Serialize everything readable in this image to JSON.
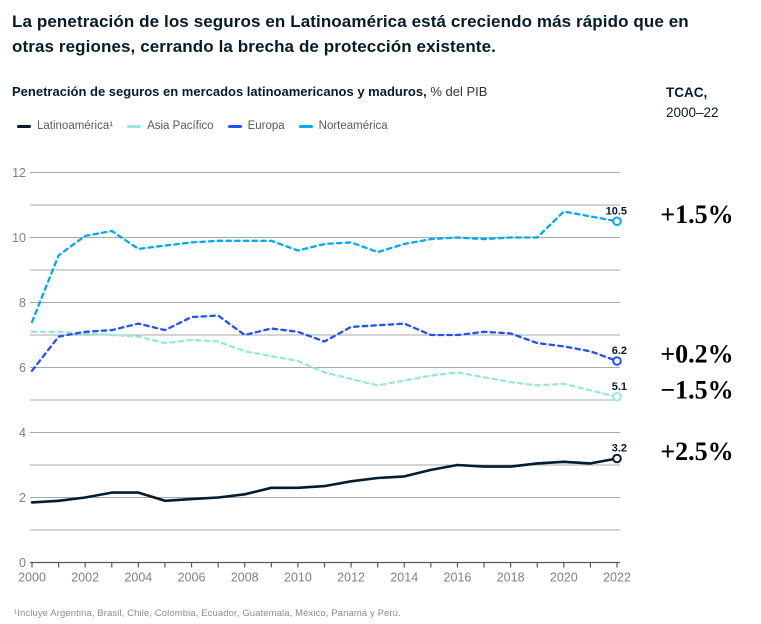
{
  "title": "La penetración de los seguros en Latinoamérica está creciendo más rápido que en otras regiones, cerrando la brecha de protección existente.",
  "subtitle": {
    "bold": "Penetración de seguros en mercados latinoamericanos y maduros,",
    "normal": " % del PIB"
  },
  "cagr_header": {
    "line1": "TCAC,",
    "line2": "2000–22"
  },
  "footnote": "¹Incluye Argentina, Brasil, Chile, Colombia, Ecuador, Guatemala, México, Panamá y Perú.",
  "colors": {
    "text_dark": "#051c2c",
    "grid": "#a8a8a8",
    "axis": "#595959",
    "tick_label": "#808080",
    "legend_text": "#595959",
    "footnote": "#8c8c8c",
    "background": "#ffffff",
    "latinoamerica": "#051c2c",
    "asia_pacifico": "#99e6dc",
    "europa": "#2251ff",
    "norteamerica": "#00a9f4"
  },
  "chart_data": {
    "type": "line",
    "x": [
      2000,
      2001,
      2002,
      2003,
      2004,
      2005,
      2006,
      2007,
      2008,
      2009,
      2010,
      2011,
      2012,
      2013,
      2014,
      2015,
      2016,
      2017,
      2018,
      2019,
      2020,
      2021,
      2022
    ],
    "x_label_every": 2,
    "ylim": [
      0,
      12
    ],
    "y_grid_step": 1,
    "y_label_step": 2,
    "grid": true,
    "legend_position": "top-left",
    "xlabel": "",
    "ylabel": "% del PIB",
    "series": [
      {
        "name": "Latinoamérica¹",
        "style": "solid",
        "color_key": "latinoamerica",
        "end_label": "3.2",
        "cagr": "+2.5%",
        "values": [
          1.85,
          1.9,
          2.0,
          2.15,
          2.15,
          1.9,
          1.95,
          2.0,
          2.1,
          2.3,
          2.3,
          2.35,
          2.5,
          2.6,
          2.65,
          2.85,
          3.0,
          2.95,
          2.95,
          3.05,
          3.1,
          3.05,
          3.2
        ]
      },
      {
        "name": "Asia Pacífico",
        "style": "dashed",
        "color_key": "asia_pacifico",
        "end_label": "5.1",
        "cagr": "−1.5%",
        "values": [
          7.1,
          7.1,
          7.05,
          7.0,
          6.95,
          6.75,
          6.85,
          6.8,
          6.5,
          6.35,
          6.2,
          5.85,
          5.65,
          5.45,
          5.6,
          5.75,
          5.85,
          5.7,
          5.55,
          5.45,
          5.5,
          5.3,
          5.1
        ]
      },
      {
        "name": "Europa",
        "style": "dashed",
        "color_key": "europa",
        "end_label": "6.2",
        "cagr": "+0.2%",
        "values": [
          5.9,
          6.95,
          7.1,
          7.15,
          7.35,
          7.15,
          7.55,
          7.6,
          7.0,
          7.2,
          7.1,
          6.8,
          7.25,
          7.3,
          7.35,
          7.0,
          7.0,
          7.1,
          7.05,
          6.75,
          6.65,
          6.5,
          6.2
        ]
      },
      {
        "name": "Norteamérica",
        "style": "dashed",
        "color_key": "norteamerica",
        "end_label": "10.5",
        "cagr": "+1.5%",
        "values": [
          7.4,
          9.45,
          10.05,
          10.2,
          9.65,
          9.75,
          9.85,
          9.9,
          9.9,
          9.9,
          9.6,
          9.8,
          9.85,
          9.55,
          9.8,
          9.95,
          10.0,
          9.95,
          10.0,
          10.0,
          10.8,
          10.65,
          10.5
        ]
      }
    ]
  }
}
